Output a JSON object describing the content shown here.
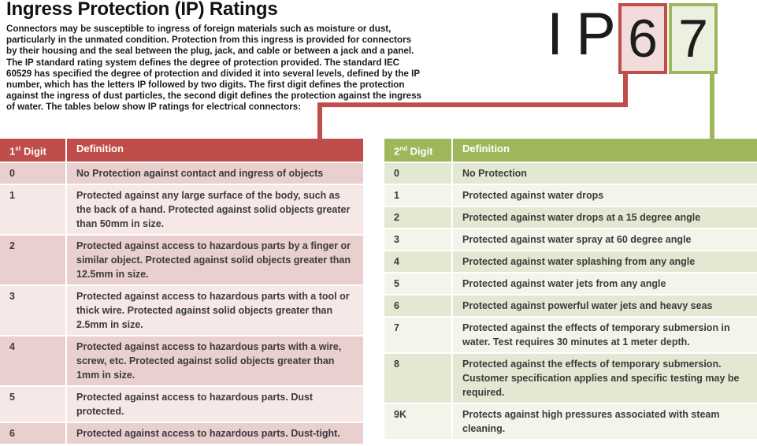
{
  "page": {
    "title": "Ingress Protection (IP) Ratings",
    "intro": "Connectors may be susceptible to ingress of foreign materials such as moisture or dust, particularly in the unmated condition. Protection from this ingress is provided for connectors by their housing and the seal between the plug, jack, and cable or between a jack and a panel. The IP standard rating system defines the degree of protection provided. The standard IEC 60529 has specified the degree of protection and divided it into several levels, defined by the IP number, which has the letters IP followed by two digits. The first digit defines the protection against the ingress of dust particles, the second digit defines the protection against the ingress of water. The tables below show IP ratings for electrical connectors:"
  },
  "ip_badge": {
    "prefix": "IP",
    "first_digit": "6",
    "second_digit": "7"
  },
  "colors": {
    "red": "#bf4d49",
    "red_fill": "#f2dcdb",
    "red_row_dark": "#e9cfcd",
    "red_row_light": "#f6e8e6",
    "green": "#9eb75a",
    "green_fill": "#ebf1de",
    "green_row_dark": "#e3e8d2",
    "green_row_light": "#f3f5ea"
  },
  "table1": {
    "header": {
      "num": "1",
      "sup": "st",
      "word": " Digit",
      "definition": "Definition"
    },
    "rows": [
      {
        "digit": "0",
        "definition": "No Protection against contact and ingress of objects"
      },
      {
        "digit": "1",
        "definition": "Protected against any large surface of the body, such as the back of a hand. Protected against solid objects greater than 50mm in size."
      },
      {
        "digit": "2",
        "definition": "Protected against access to hazardous parts by a finger or similar object. Protected against solid objects greater than 12.5mm in size."
      },
      {
        "digit": "3",
        "definition": "Protected against access to hazardous parts with a tool or thick wire. Protected against solid objects greater than 2.5mm in size."
      },
      {
        "digit": "4",
        "definition": "Protected against access to hazardous parts with a wire, screw, etc. Protected against solid objects greater than 1mm in size."
      },
      {
        "digit": "5",
        "definition": "Protected against access to hazardous parts. Dust protected."
      },
      {
        "digit": "6",
        "definition": "Protected against access to hazardous parts. Dust-tight."
      }
    ]
  },
  "table2": {
    "header": {
      "num": "2",
      "sup": "nd",
      "word": " Digit",
      "definition": "Definition"
    },
    "rows": [
      {
        "digit": "0",
        "definition": "No Protection"
      },
      {
        "digit": "1",
        "definition": "Protected against water drops"
      },
      {
        "digit": "2",
        "definition": "Protected against water drops at a 15 degree angle"
      },
      {
        "digit": "3",
        "definition": "Protected against water spray at 60 degree angle"
      },
      {
        "digit": "4",
        "definition": "Protected against water splashing from any angle"
      },
      {
        "digit": "5",
        "definition": "Protected against water jets from any angle"
      },
      {
        "digit": "6",
        "definition": "Protected against powerful water jets and heavy seas"
      },
      {
        "digit": "7",
        "definition": "Protected against the effects of temporary submersion in water. Test requires 30 minutes at 1 meter depth."
      },
      {
        "digit": "8",
        "definition": "Protected against the effects of temporary submersion. Customer specification applies and specific testing may be required."
      },
      {
        "digit": "9K",
        "definition": "Protects against high pressures associated with steam cleaning."
      }
    ]
  }
}
